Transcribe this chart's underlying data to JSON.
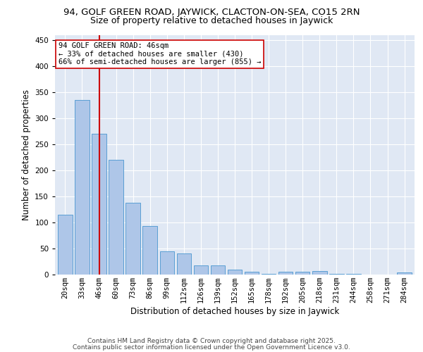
{
  "title1": "94, GOLF GREEN ROAD, JAYWICK, CLACTON-ON-SEA, CO15 2RN",
  "title2": "Size of property relative to detached houses in Jaywick",
  "xlabel": "Distribution of detached houses by size in Jaywick",
  "ylabel": "Number of detached properties",
  "categories": [
    "20sqm",
    "33sqm",
    "46sqm",
    "60sqm",
    "73sqm",
    "86sqm",
    "99sqm",
    "112sqm",
    "126sqm",
    "139sqm",
    "152sqm",
    "165sqm",
    "178sqm",
    "192sqm",
    "205sqm",
    "218sqm",
    "231sqm",
    "244sqm",
    "258sqm",
    "271sqm",
    "284sqm"
  ],
  "values": [
    115,
    335,
    270,
    220,
    138,
    94,
    44,
    40,
    17,
    17,
    10,
    6,
    2,
    5,
    6,
    7,
    2,
    1,
    0,
    0,
    4
  ],
  "bar_color": "#aec6e8",
  "bar_edge_color": "#5a9fd4",
  "vline_x_idx": 2,
  "vline_color": "#cc0000",
  "annotation_line1": "94 GOLF GREEN ROAD: 46sqm",
  "annotation_line2": "← 33% of detached houses are smaller (430)",
  "annotation_line3": "66% of semi-detached houses are larger (855) →",
  "annotation_box_color": "#ffffff",
  "annotation_box_edge": "#cc0000",
  "ylim": [
    0,
    460
  ],
  "yticks": [
    0,
    50,
    100,
    150,
    200,
    250,
    300,
    350,
    400,
    450
  ],
  "background_color": "#e0e8f4",
  "footer_line1": "Contains HM Land Registry data © Crown copyright and database right 2025.",
  "footer_line2": "Contains public sector information licensed under the Open Government Licence v3.0.",
  "title_fontsize": 9.5,
  "subtitle_fontsize": 9,
  "axis_label_fontsize": 8.5,
  "tick_fontsize": 7.5,
  "annotation_fontsize": 7.5,
  "footer_fontsize": 6.5
}
